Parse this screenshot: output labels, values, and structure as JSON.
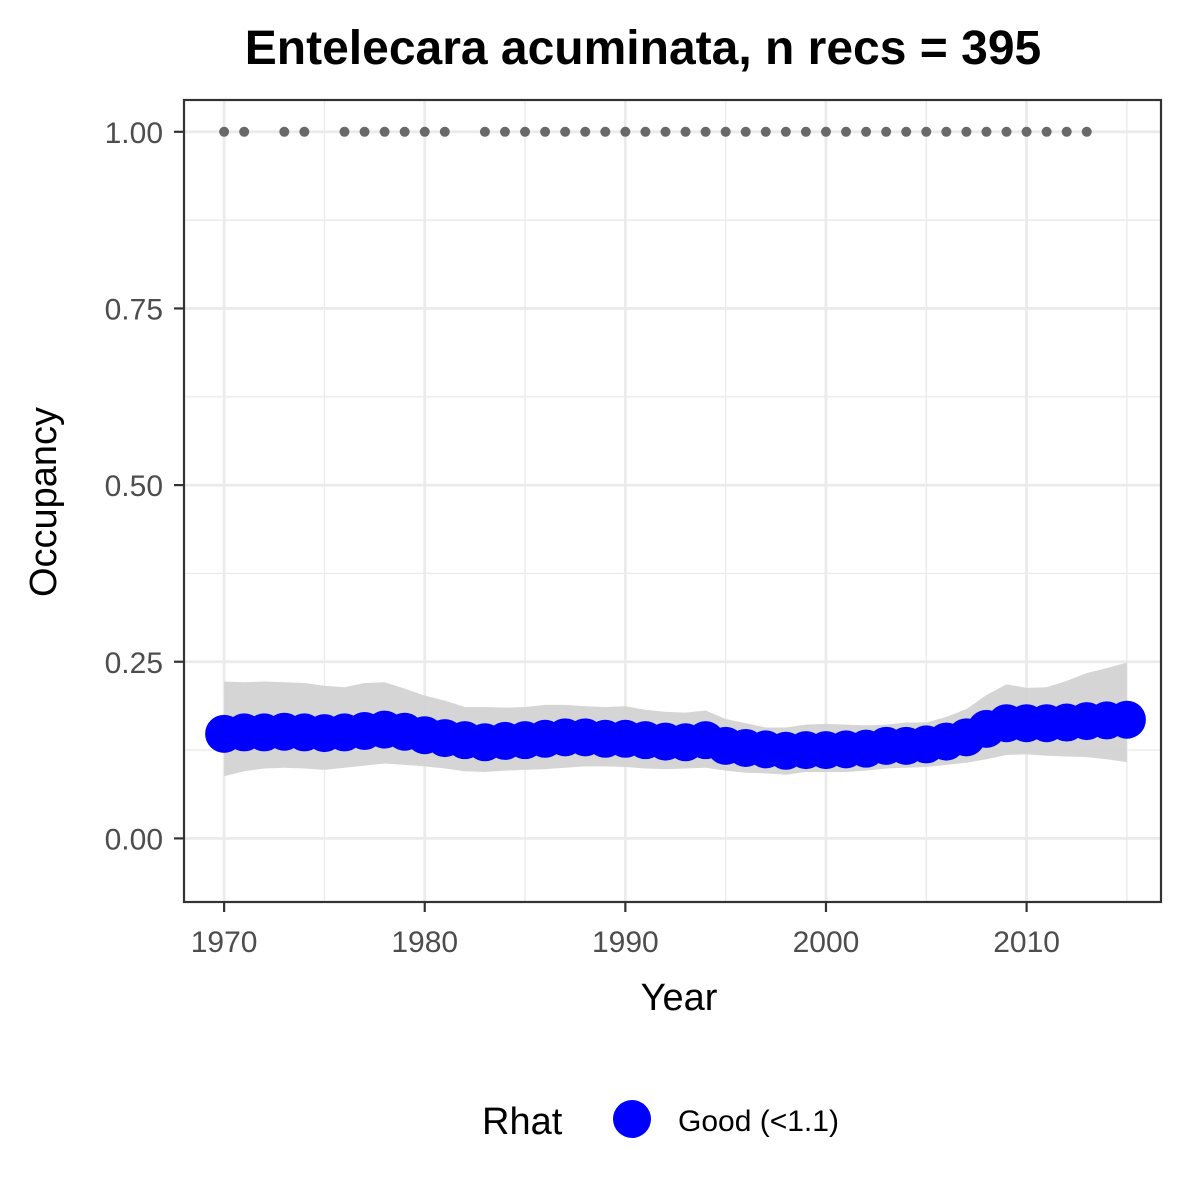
{
  "chart_data": {
    "type": "line",
    "title": "Entelecara acuminata, n recs = 395",
    "xlabel": "Year",
    "ylabel": "Occupancy",
    "xlim": [
      1968.0,
      2016.7
    ],
    "ylim": [
      -0.09,
      1.045
    ],
    "x_ticks": [
      1970,
      1980,
      1990,
      2000,
      2010
    ],
    "x_tick_labels": [
      "1970",
      "1980",
      "1990",
      "2000",
      "2010"
    ],
    "y_ticks": [
      0,
      0.25,
      0.5,
      0.75,
      1.0
    ],
    "y_tick_labels": [
      "0.00",
      "0.25",
      "0.50",
      "0.75",
      "1.00"
    ],
    "grid": true,
    "legend": {
      "title": "Rhat",
      "position": "bottom",
      "entries": [
        {
          "label": "Good (<1.1)",
          "color": "#0000ff"
        }
      ]
    },
    "colors": {
      "points": "#0000ff",
      "ribbon": "#d3d3d3",
      "observed": "#696969",
      "grid": "#ebebeb",
      "border": "#333333",
      "ticks": "#4d4d4d"
    },
    "series": [
      {
        "type": "points",
        "rhat": "Good (<1.1)",
        "x": [
          1970,
          1971,
          1972,
          1973,
          1974,
          1975,
          1976,
          1977,
          1978,
          1979,
          1980,
          1981,
          1982,
          1983,
          1984,
          1985,
          1986,
          1987,
          1988,
          1989,
          1990,
          1991,
          1992,
          1993,
          1994,
          1995,
          1996,
          1997,
          1998,
          1999,
          2000,
          2001,
          2002,
          2003,
          2004,
          2005,
          2006,
          2007,
          2008,
          2009,
          2010,
          2011,
          2012,
          2013,
          2014,
          2015
        ],
        "y": [
          0.148,
          0.15,
          0.15,
          0.151,
          0.15,
          0.149,
          0.15,
          0.152,
          0.154,
          0.151,
          0.146,
          0.142,
          0.139,
          0.136,
          0.138,
          0.139,
          0.141,
          0.143,
          0.143,
          0.141,
          0.141,
          0.139,
          0.137,
          0.136,
          0.139,
          0.131,
          0.128,
          0.126,
          0.124,
          0.125,
          0.125,
          0.126,
          0.127,
          0.131,
          0.131,
          0.133,
          0.137,
          0.143,
          0.155,
          0.163,
          0.163,
          0.163,
          0.164,
          0.166,
          0.167,
          0.168
        ]
      },
      {
        "type": "ribbon",
        "x": [
          1970,
          1971,
          1972,
          1973,
          1974,
          1975,
          1976,
          1977,
          1978,
          1979,
          1980,
          1981,
          1982,
          1983,
          1984,
          1985,
          1986,
          1987,
          1988,
          1989,
          1990,
          1991,
          1992,
          1993,
          1994,
          1995,
          1996,
          1997,
          1998,
          1999,
          2000,
          2001,
          2002,
          2003,
          2004,
          2005,
          2006,
          2007,
          2008,
          2009,
          2010,
          2011,
          2012,
          2013,
          2014,
          2015
        ],
        "lower": [
          0.088,
          0.095,
          0.099,
          0.1,
          0.099,
          0.097,
          0.1,
          0.103,
          0.106,
          0.104,
          0.102,
          0.099,
          0.095,
          0.094,
          0.096,
          0.097,
          0.098,
          0.1,
          0.102,
          0.102,
          0.101,
          0.099,
          0.098,
          0.099,
          0.1,
          0.096,
          0.093,
          0.092,
          0.09,
          0.094,
          0.094,
          0.094,
          0.096,
          0.099,
          0.1,
          0.101,
          0.104,
          0.107,
          0.112,
          0.118,
          0.119,
          0.117,
          0.116,
          0.115,
          0.112,
          0.108
        ],
        "upper": [
          0.222,
          0.221,
          0.222,
          0.221,
          0.22,
          0.216,
          0.214,
          0.22,
          0.221,
          0.212,
          0.202,
          0.195,
          0.186,
          0.186,
          0.185,
          0.186,
          0.189,
          0.189,
          0.187,
          0.186,
          0.187,
          0.182,
          0.179,
          0.178,
          0.181,
          0.169,
          0.163,
          0.157,
          0.157,
          0.161,
          0.162,
          0.161,
          0.16,
          0.161,
          0.164,
          0.164,
          0.172,
          0.183,
          0.203,
          0.218,
          0.213,
          0.214,
          0.223,
          0.234,
          0.241,
          0.249
        ]
      },
      {
        "type": "observed",
        "x": [
          1970,
          1971,
          1973,
          1974,
          1976,
          1977,
          1978,
          1979,
          1980,
          1981,
          1983,
          1984,
          1985,
          1986,
          1987,
          1988,
          1989,
          1990,
          1991,
          1992,
          1993,
          1994,
          1995,
          1996,
          1997,
          1998,
          1999,
          2000,
          2001,
          2002,
          2003,
          2004,
          2005,
          2006,
          2007,
          2008,
          2009,
          2010,
          2011,
          2012,
          2013
        ],
        "y": [
          1,
          1,
          1,
          1,
          1,
          1,
          1,
          1,
          1,
          1,
          1,
          1,
          1,
          1,
          1,
          1,
          1,
          1,
          1,
          1,
          1,
          1,
          1,
          1,
          1,
          1,
          1,
          1,
          1,
          1,
          1,
          1,
          1,
          1,
          1,
          1,
          1,
          1,
          1,
          1,
          1
        ]
      }
    ]
  }
}
